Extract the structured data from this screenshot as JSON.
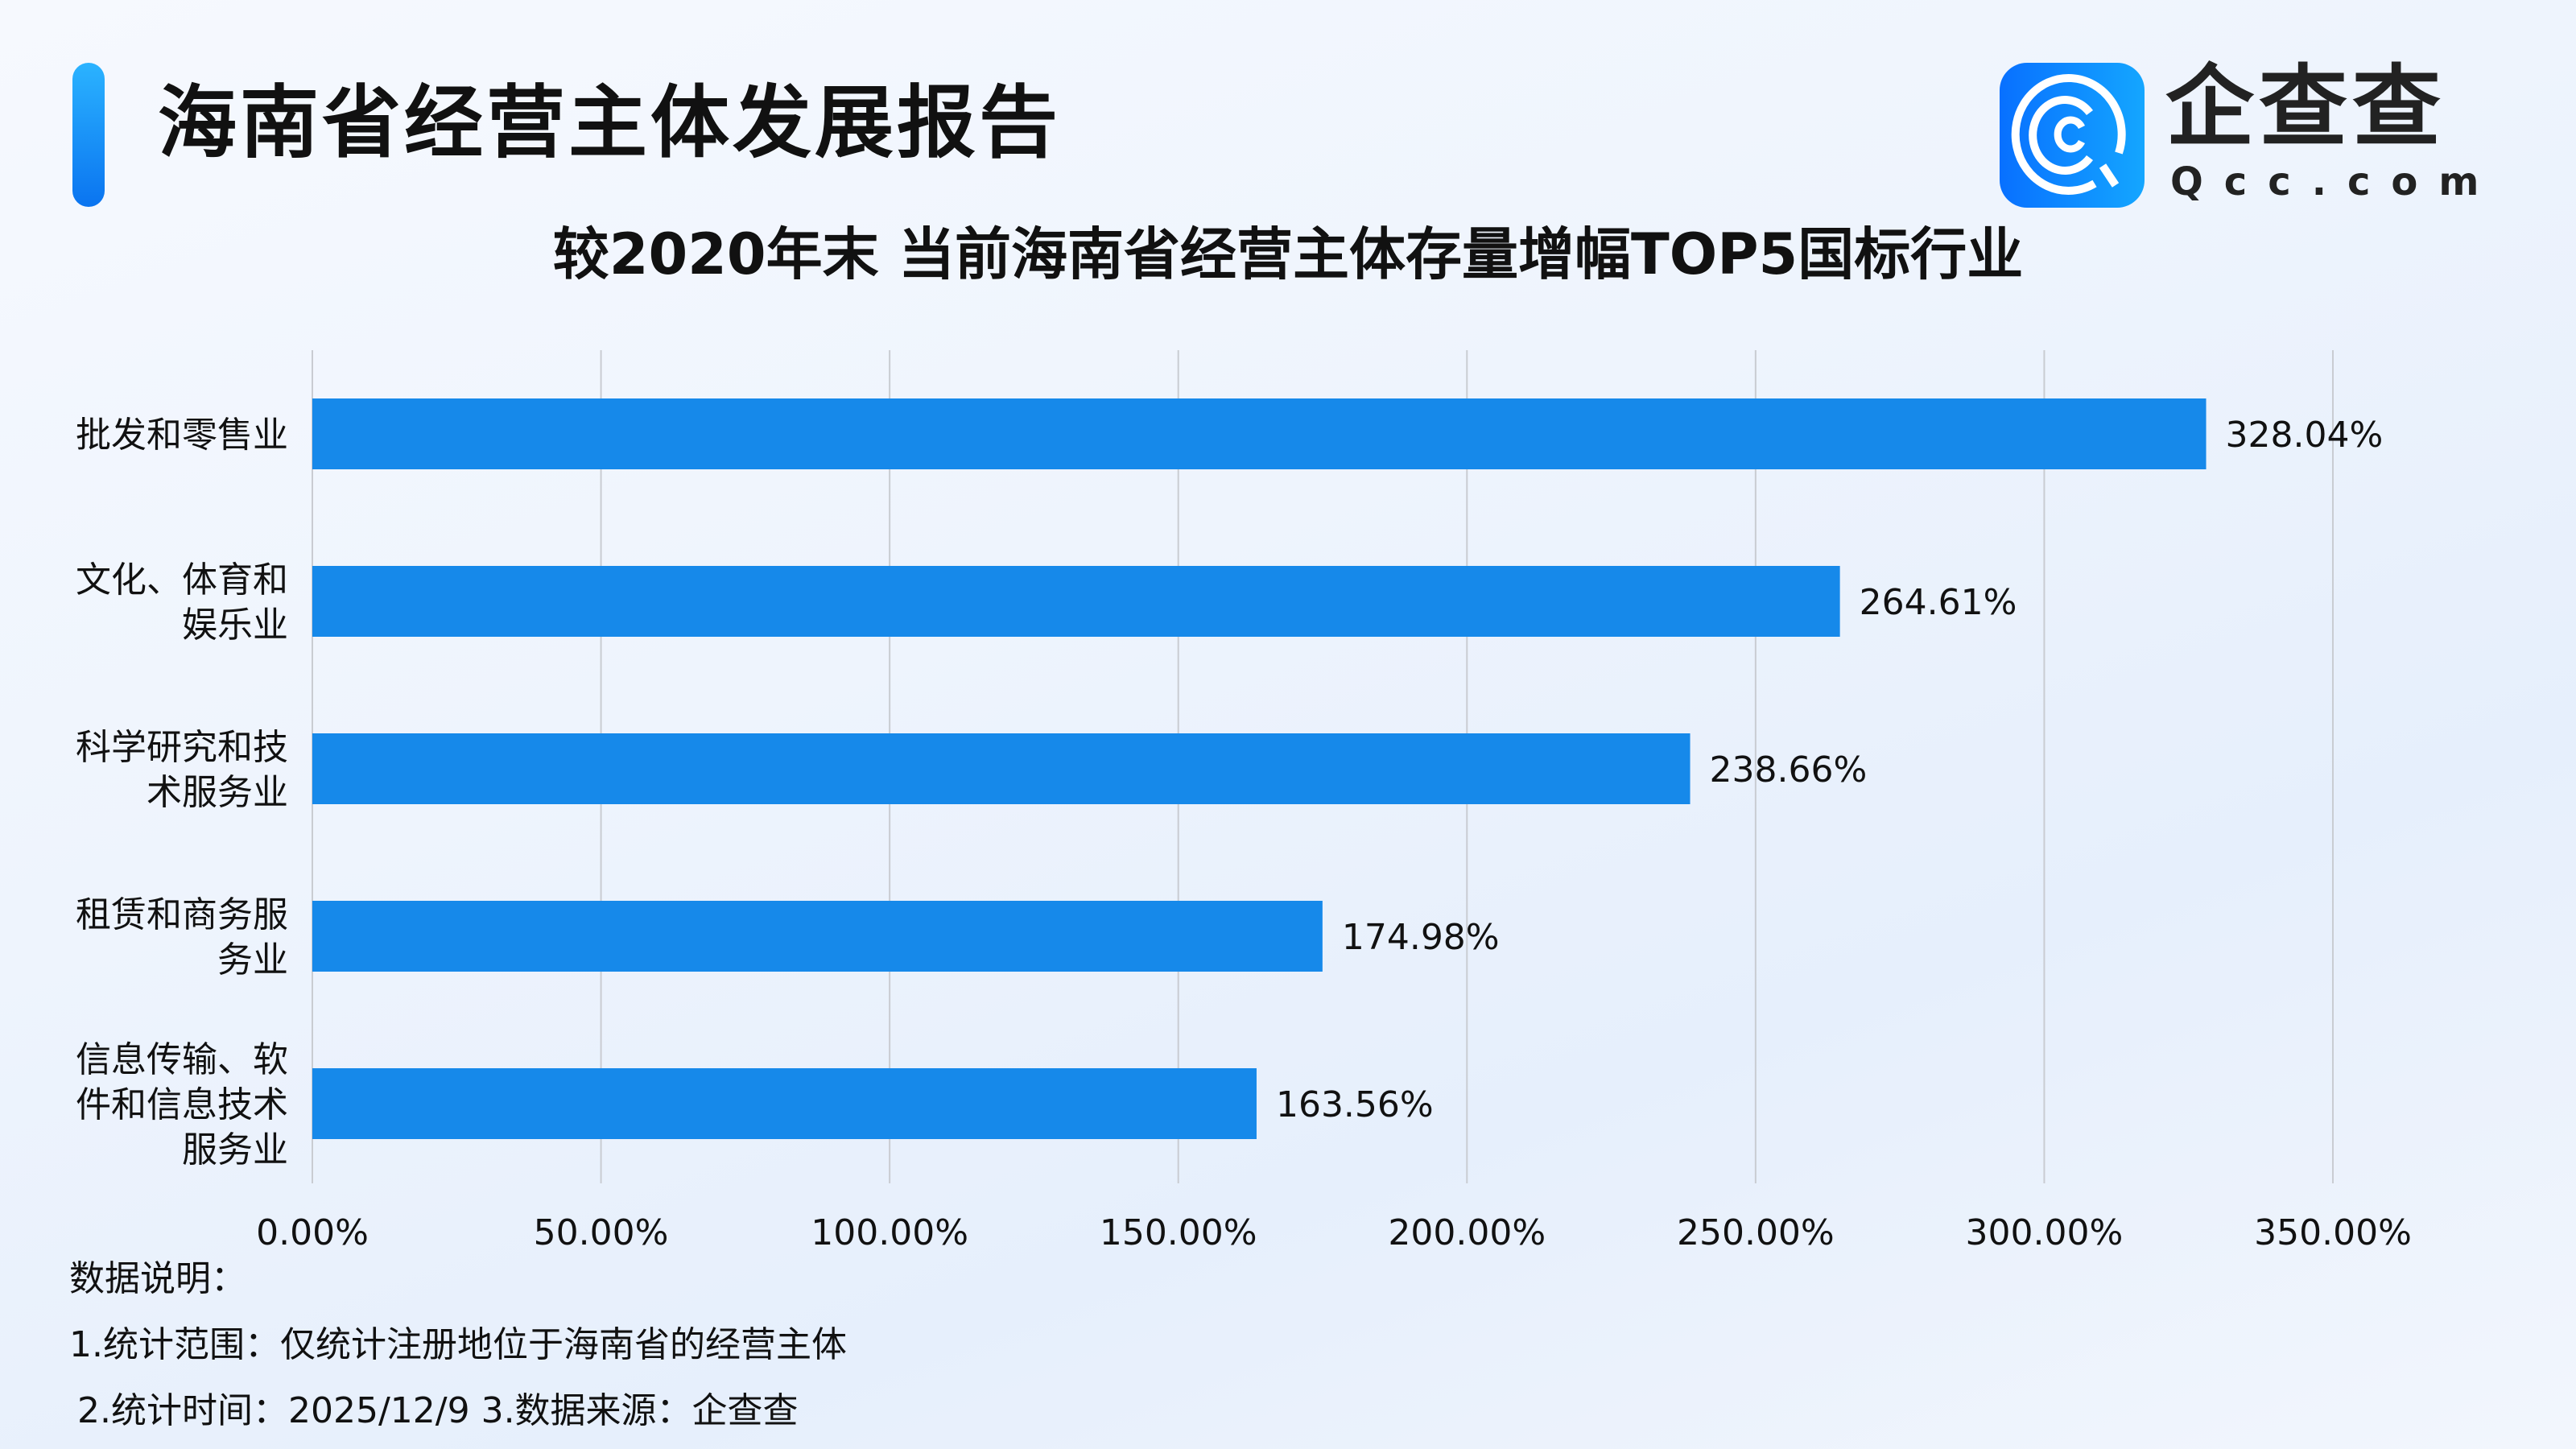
{
  "header": {
    "title": "海南省经营主体发展报告",
    "logo_cn": "企查查",
    "logo_en": "Qcc.com"
  },
  "chart_data": {
    "type": "bar",
    "orientation": "horizontal",
    "title": "较2020年末 当前海南省经营主体存量增幅TOP5国标行业",
    "categories": [
      "批发和零售业",
      "文化、体育和娱乐业",
      "科学研究和技术服务业",
      "租赁和商务服务业",
      "信息传输、软件和信息技术服务业"
    ],
    "category_lines": [
      [
        "批发和零售业"
      ],
      [
        "文化、体育和",
        "娱乐业"
      ],
      [
        "科学研究和技",
        "术服务业"
      ],
      [
        "租赁和商务服",
        "务业"
      ],
      [
        "信息传输、软",
        "件和信息技术",
        "服务业"
      ]
    ],
    "values": [
      328.04,
      264.61,
      238.66,
      174.98,
      163.56
    ],
    "value_labels": [
      "328.04%",
      "264.61%",
      "238.66%",
      "174.98%",
      "163.56%"
    ],
    "xlim": [
      0,
      350
    ],
    "xticks": [
      0,
      50,
      100,
      150,
      200,
      250,
      300,
      350
    ],
    "xtick_labels": [
      "0.00%",
      "50.00%",
      "100.00%",
      "150.00%",
      "200.00%",
      "250.00%",
      "300.00%",
      "350.00%"
    ],
    "grid": true,
    "bar_color": "#1689ea",
    "xlabel": "",
    "ylabel": ""
  },
  "notes": {
    "heading": "数据说明：",
    "line1": "1.统计范围：仅统计注册地位于海南省的经营主体",
    "line2": "2.统计时间：2025/12/9  3.数据来源：企查查"
  }
}
